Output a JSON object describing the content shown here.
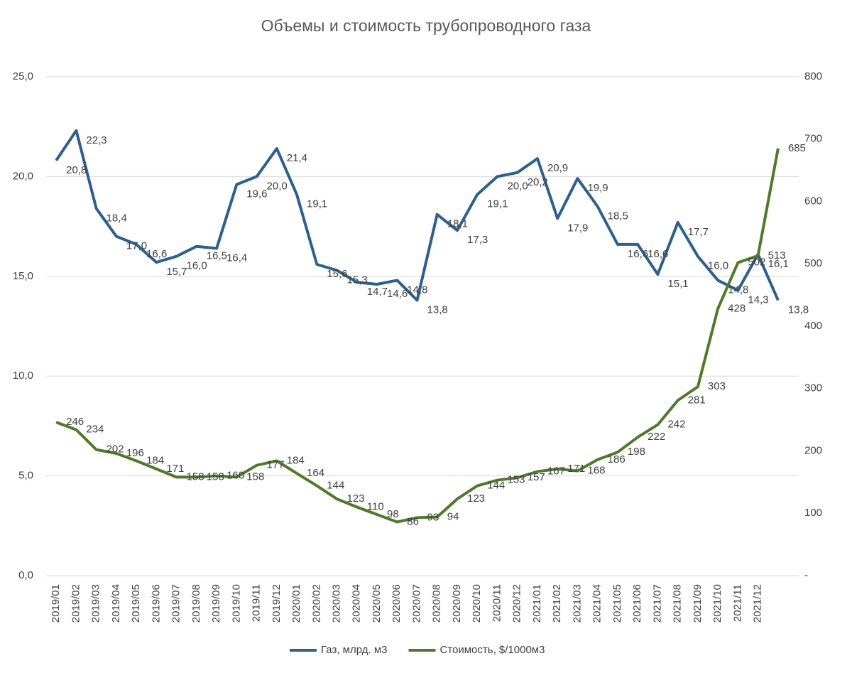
{
  "chart_data": {
    "type": "line",
    "title": "Объемы и стоимость трубопроводного газа",
    "categories": [
      "2019/01",
      "2019/02",
      "2019/03",
      "2019/04",
      "2019/05",
      "2019/06",
      "2019/07",
      "2019/08",
      "2019/09",
      "2019/10",
      "2019/11",
      "2019/12",
      "2020/01",
      "2020/02",
      "2020/03",
      "2020/04",
      "2020/05",
      "2020/06",
      "2020/07",
      "2020/08",
      "2020/09",
      "2020/10",
      "2020/11",
      "2020/12",
      "2021/01",
      "2021/02",
      "2021/03",
      "2021/04",
      "2021/05",
      "2021/06",
      "2021/07",
      "2021/08",
      "2021/09",
      "2021/10",
      "2021/11",
      "2021/12",
      null
    ],
    "series": [
      {
        "name": "Газ, млрд. м3",
        "color": "#2e5f8e",
        "values": [
          20.8,
          22.3,
          18.4,
          17.0,
          16.6,
          15.7,
          16.0,
          16.5,
          16.4,
          19.6,
          20.0,
          21.4,
          19.1,
          15.6,
          15.3,
          14.7,
          14.6,
          14.8,
          13.8,
          18.1,
          17.3,
          19.1,
          20.0,
          20.2,
          20.9,
          17.9,
          19.9,
          18.5,
          16.6,
          16.6,
          15.1,
          17.7,
          16.0,
          14.8,
          14.3,
          16.1,
          13.8
        ],
        "value_labels": [
          "20,8",
          "22,3",
          "18,4",
          "17,0",
          "16,6",
          "15,7",
          "16,0",
          "16,5",
          "16,4",
          "19,6",
          "20,0",
          "21,4",
          "19,1",
          "15,6",
          "15,3",
          "14,7",
          "14,6",
          "14,8",
          "13,8",
          "18,1",
          "17,3",
          "19,1",
          "20,0",
          "20,2",
          "20,9",
          "17,9",
          "19,9",
          "18,5",
          "16,6",
          "16,6",
          "15,1",
          "17,7",
          "16,0",
          "14,8",
          "14,3",
          "16,1",
          "13,8"
        ]
      },
      {
        "name": "Стоимость, $/1000м3",
        "color": "#4f7a2c",
        "axis": "y2",
        "values": [
          246,
          234,
          202,
          196,
          184,
          171,
          158,
          158,
          160,
          158,
          177,
          184,
          164,
          144,
          123,
          110,
          98,
          86,
          93,
          94,
          123,
          144,
          153,
          157,
          167,
          171,
          168,
          186,
          198,
          222,
          242,
          281,
          303,
          428,
          502,
          513,
          685
        ]
      }
    ],
    "ylim": [
      0,
      25
    ],
    "yticks": [
      {
        "value": 0,
        "label": "0,0"
      },
      {
        "value": 5,
        "label": "5,0"
      },
      {
        "value": 10,
        "label": "10,0"
      },
      {
        "value": 15,
        "label": "15,0"
      },
      {
        "value": 20,
        "label": "20,0"
      },
      {
        "value": 25,
        "label": "25,0"
      }
    ],
    "y2lim": [
      0,
      800
    ],
    "y2ticks": [
      {
        "value": 0,
        "label": "-"
      },
      100,
      200,
      300,
      400,
      500,
      600,
      700,
      800
    ],
    "grid": true,
    "legend": "bottom"
  }
}
